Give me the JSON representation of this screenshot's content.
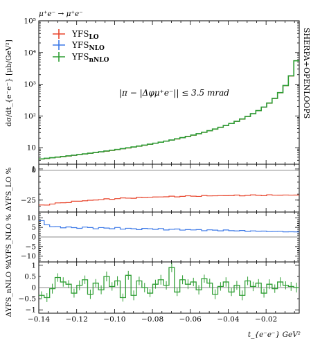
{
  "title": "μ⁺e⁻ → μ⁺e⁻",
  "side_label": "SHERPA+OPENLOOPS",
  "cut_label": "|π − |Δφμ⁺e⁻|| ≤ 3.5 mrad",
  "colors": {
    "LO": "#e8452c",
    "NLO": "#3b78e7",
    "nNLO": "#2e9e33"
  },
  "chart_data": [
    {
      "type": "line",
      "panel": "main",
      "ylabel": "dσ/dt_{e⁻e⁻} [μb/GeV²]",
      "yscale": "log",
      "ylim": [
        3,
        100000
      ],
      "xlim": [
        -0.14,
        -0.0025
      ],
      "grid": false,
      "legend": "top-left",
      "yticks": [
        "10",
        "10²",
        "10³",
        "10⁴",
        "10⁵"
      ],
      "series": [
        {
          "name": "YFS_LO",
          "label_main": "YFS",
          "label_sub": "LO",
          "color_key": "LO"
        },
        {
          "name": "YFS_NLO",
          "label_main": "YFS",
          "label_sub": "NLO",
          "color_key": "NLO"
        },
        {
          "name": "YFS_nNLO",
          "label_main": "YFS",
          "label_sub": "nNLO",
          "color_key": "nNLO"
        }
      ]
    },
    {
      "type": "line",
      "panel": "ratio1",
      "ylabel": "ΔYFS_LO %",
      "ylim": [
        -35,
        5
      ],
      "yticks": [
        "1",
        "0",
        "−25"
      ],
      "series": [
        {
          "name": "YFS_LO",
          "approx_values": [
            -30,
            -26,
            -24,
            -23,
            -22,
            -21,
            -20.5,
            -20,
            -20
          ]
        }
      ]
    },
    {
      "type": "line",
      "panel": "ratio2",
      "ylabel": "ΔYFS_NLO %",
      "ylim": [
        -13,
        13
      ],
      "yticks": [
        "10",
        "5",
        "0",
        "−5",
        "−10"
      ],
      "series": [
        {
          "name": "YFS_NLO",
          "approx_values": [
            8,
            5,
            4.5,
            4,
            3.8,
            3.5,
            3,
            2.5,
            2
          ]
        }
      ]
    },
    {
      "type": "line",
      "panel": "ratio3",
      "ylabel": "ΔYFS_nNLO %",
      "ylim": [
        -1.15,
        1.15
      ],
      "yticks": [
        "1",
        "0.5",
        "0",
        "−0.5",
        "−1"
      ],
      "series": [
        {
          "name": "YFS_nNLO"
        }
      ]
    }
  ],
  "xaxis": {
    "label": "t_{e⁻e⁻} GeV²",
    "ticks": [
      "−0.14",
      "−0.12",
      "−0.10",
      "−0.08",
      "−0.06",
      "−0.04",
      "−0.02"
    ]
  }
}
